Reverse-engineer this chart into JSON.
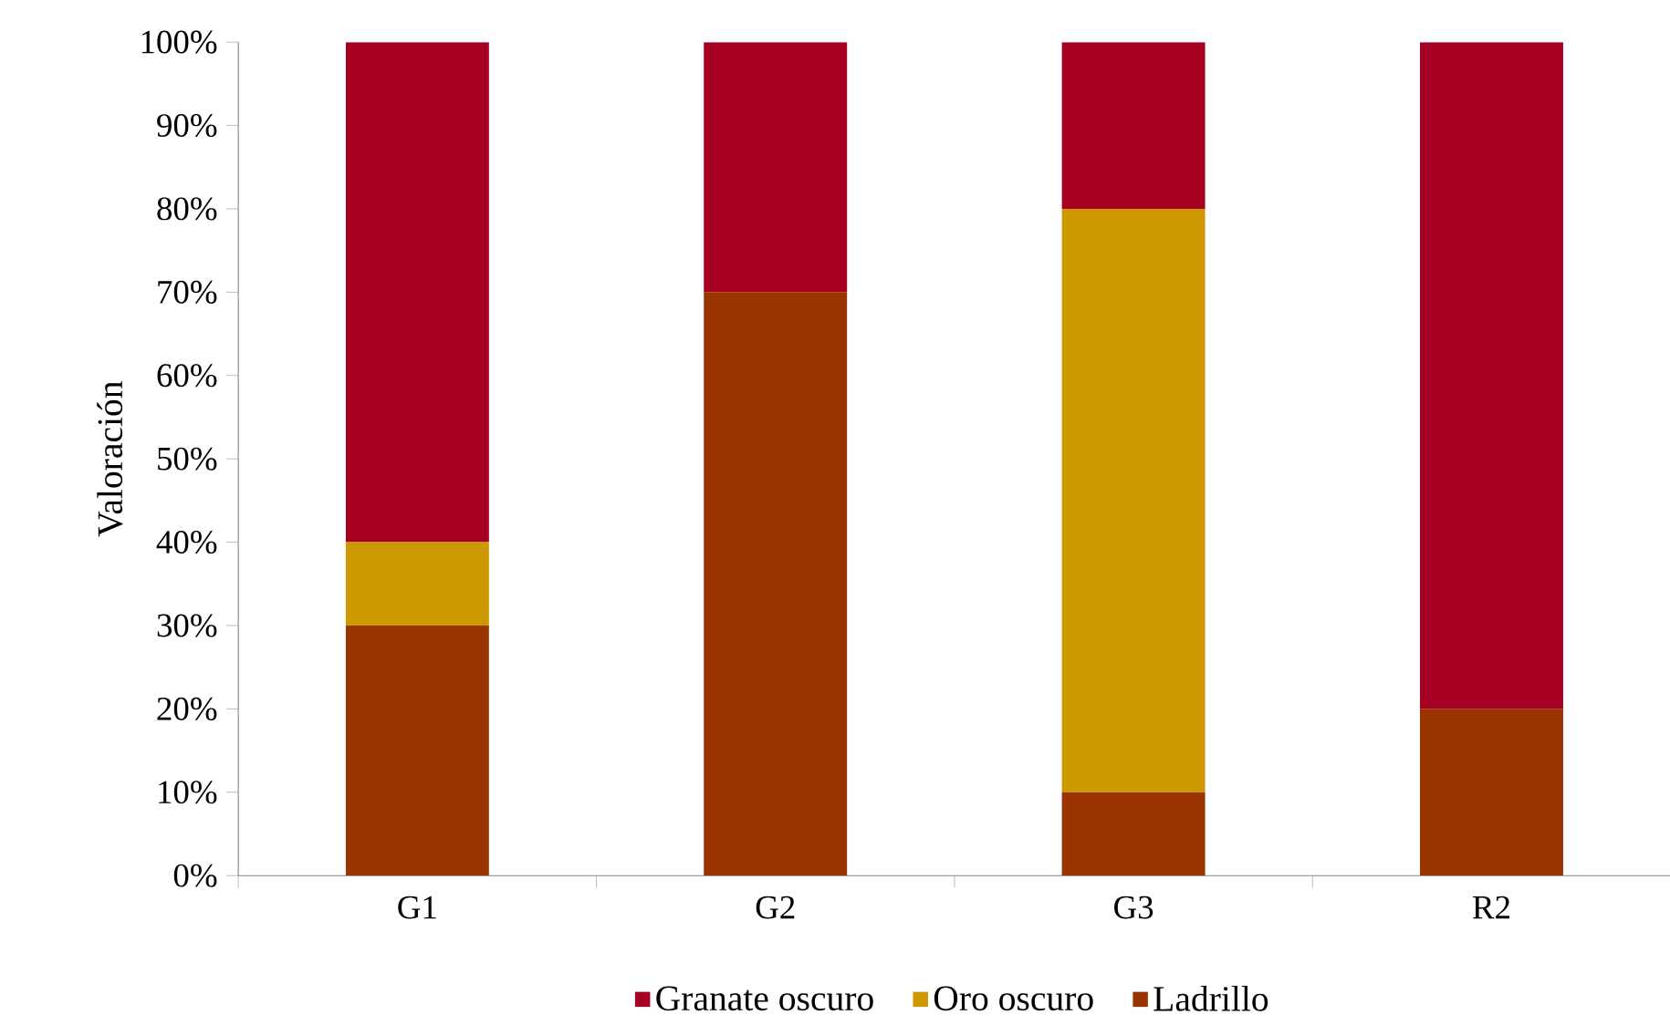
{
  "chart_data": {
    "type": "bar",
    "stacked": true,
    "ylabel": "Valoración",
    "categories": [
      "G1",
      "G2",
      "G3",
      "R2"
    ],
    "series": [
      {
        "name": "Ladrillo",
        "color": "#993300",
        "values": [
          30,
          70,
          10,
          20
        ]
      },
      {
        "name": "Oro oscuro",
        "color": "#cc9900",
        "values": [
          10,
          0,
          70,
          0
        ]
      },
      {
        "name": "Granate oscuro",
        "color": "#a50021",
        "values": [
          60,
          30,
          20,
          80
        ]
      }
    ],
    "ylim": [
      0,
      100
    ],
    "yticks": [
      {
        "value": 0,
        "label": "0%"
      },
      {
        "value": 10,
        "label": "10%"
      },
      {
        "value": 20,
        "label": "20%"
      },
      {
        "value": 30,
        "label": "30%"
      },
      {
        "value": 40,
        "label": "40%"
      },
      {
        "value": 50,
        "label": "50%"
      },
      {
        "value": 60,
        "label": "60%"
      },
      {
        "value": 70,
        "label": "70%"
      },
      {
        "value": 80,
        "label": "80%"
      },
      {
        "value": 90,
        "label": "90%"
      },
      {
        "value": 100,
        "label": "100%"
      }
    ],
    "grid": false,
    "legend": "bottom"
  }
}
